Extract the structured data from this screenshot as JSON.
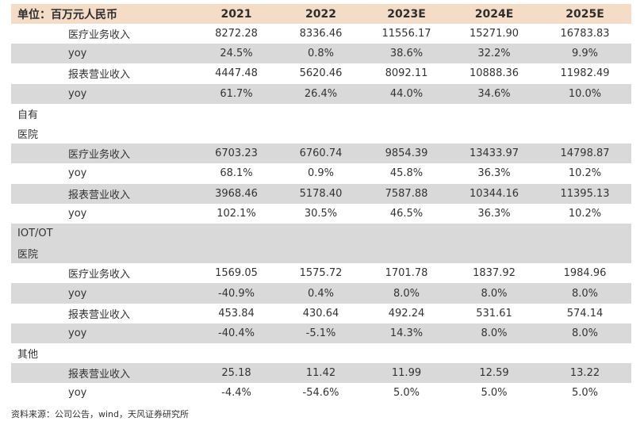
{
  "header": {
    "unit_label": "单位：百万元人民币",
    "years": [
      "2021",
      "2022",
      "2023E",
      "2024E",
      "2025E"
    ]
  },
  "segments": [
    {
      "label": "",
      "rows": [
        {
          "item": "医疗业务收入",
          "values": [
            "8272.28",
            "8336.46",
            "11556.17",
            "15271.90",
            "16783.83"
          ]
        },
        {
          "item": "yoy",
          "values": [
            "24.5%",
            "0.8%",
            "38.6%",
            "32.2%",
            "9.9%"
          ]
        },
        {
          "item": "报表营业收入",
          "values": [
            "4447.48",
            "5620.46",
            "8092.11",
            "10888.36",
            "11982.49"
          ]
        },
        {
          "item": "yoy",
          "values": [
            "61.7%",
            "26.4%",
            "44.0%",
            "34.6%",
            "10.0%"
          ]
        }
      ]
    },
    {
      "label_lines": [
        "自有",
        "医院"
      ],
      "rows": [
        {
          "item": "医疗业务收入",
          "values": [
            "6703.23",
            "6760.74",
            "9854.39",
            "13433.97",
            "14798.87"
          ]
        },
        {
          "item": "yoy",
          "values": [
            "68.1%",
            "0.9%",
            "45.8%",
            "36.3%",
            "10.2%"
          ]
        },
        {
          "item": "报表营业收入",
          "values": [
            "3968.46",
            "5178.40",
            "7587.88",
            "10344.16",
            "11395.13"
          ]
        },
        {
          "item": "yoy",
          "values": [
            "102.1%",
            "30.5%",
            "46.5%",
            "36.3%",
            "10.2%"
          ]
        }
      ]
    },
    {
      "label_lines": [
        "IOT/OT",
        "医院"
      ],
      "rows": [
        {
          "item": "医疗业务收入",
          "values": [
            "1569.05",
            "1575.72",
            "1701.78",
            "1837.92",
            "1984.96"
          ]
        },
        {
          "item": "yoy",
          "values": [
            "-40.9%",
            "0.4%",
            "8.0%",
            "8.0%",
            "8.0%"
          ]
        },
        {
          "item": "报表营业收入",
          "values": [
            "453.84",
            "430.64",
            "492.24",
            "531.61",
            "574.14"
          ]
        },
        {
          "item": "yoy",
          "values": [
            "-40.4%",
            "-5.1%",
            "14.3%",
            "8.0%",
            "8.0%"
          ]
        }
      ]
    },
    {
      "label": "其他",
      "rows": [
        {
          "item": "报表营业收入",
          "values": [
            "25.18",
            "11.42",
            "11.99",
            "12.59",
            "13.22"
          ]
        },
        {
          "item": "yoy",
          "values": [
            "-4.4%",
            "-54.6%",
            "5.0%",
            "5.0%",
            "5.0%"
          ]
        }
      ]
    }
  ],
  "footer": {
    "source": "资料来源：公司公告，wind，天风证券研究所"
  },
  "colors": {
    "header_bg": "#f4dcc7",
    "shade_bg": "#d9d9d9"
  }
}
